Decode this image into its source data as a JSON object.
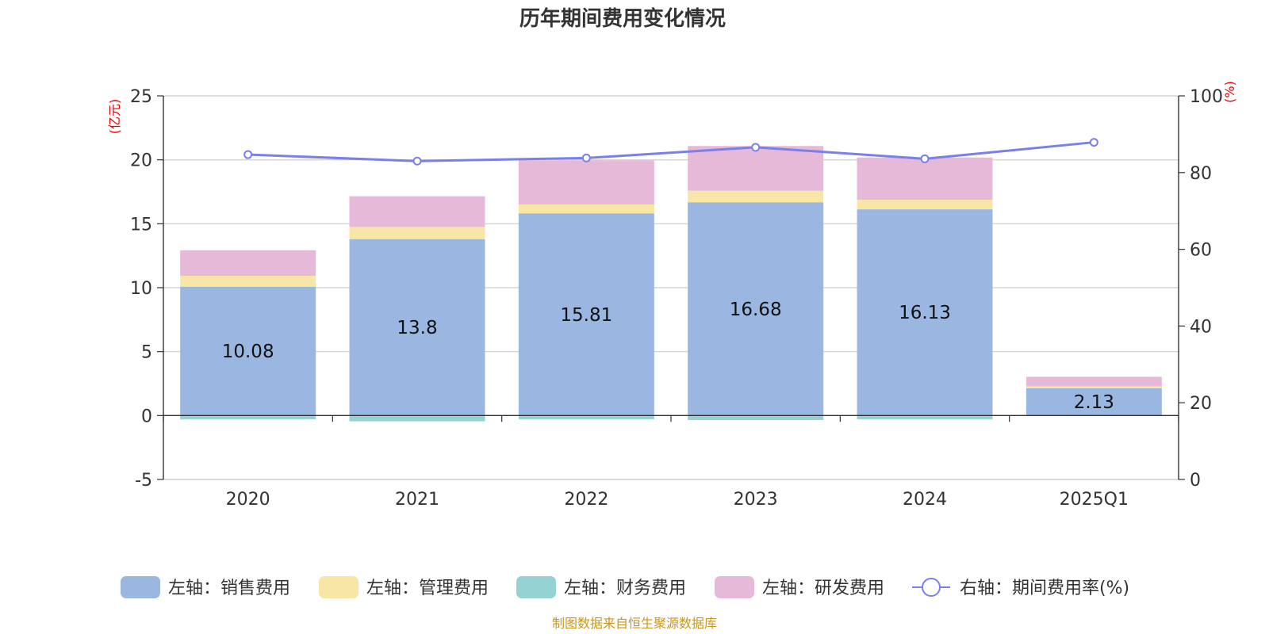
{
  "chart_data": {
    "type": "bar",
    "title": "历年期间费用变化情况",
    "categories": [
      "2020",
      "2021",
      "2022",
      "2023",
      "2024",
      "2025Q1"
    ],
    "left_axis": {
      "unit": "(亿元)",
      "ylim": [
        -5,
        25
      ],
      "ticks": [
        25,
        20,
        15,
        10,
        5,
        0,
        -5
      ]
    },
    "right_axis": {
      "unit": "(%)",
      "ylim": [
        0,
        100
      ],
      "ticks": [
        100,
        80,
        60,
        40,
        20,
        0
      ]
    },
    "series": [
      {
        "name": "左轴：销售费用",
        "axis": "left",
        "color": "#9ab7e1",
        "values": [
          10.08,
          13.8,
          15.81,
          16.68,
          16.13,
          2.13
        ],
        "labels": [
          "10.08",
          "13.8",
          "15.81",
          "16.68",
          "16.13",
          "2.13"
        ]
      },
      {
        "name": "左轴：管理费用",
        "axis": "left",
        "color": "#f7e6a6",
        "values": [
          0.85,
          0.95,
          0.7,
          0.9,
          0.75,
          0.15
        ]
      },
      {
        "name": "左轴：财务费用",
        "axis": "left",
        "color": "#95d3d3",
        "values": [
          -0.3,
          -0.45,
          -0.3,
          -0.35,
          -0.3,
          -0.03
        ]
      },
      {
        "name": "左轴：研发费用",
        "axis": "left",
        "color": "#e7b9d9",
        "values": [
          2.0,
          2.4,
          3.45,
          3.5,
          3.3,
          0.75
        ]
      },
      {
        "name": "右轴：期间费用率(%)",
        "axis": "right",
        "type": "line",
        "color": "#7b7fe8",
        "values": [
          84.7,
          83.0,
          83.8,
          86.6,
          83.6,
          87.9
        ]
      }
    ],
    "grid": true,
    "legend_position": "bottom",
    "source": "制图数据来自恒生聚源数据库"
  }
}
